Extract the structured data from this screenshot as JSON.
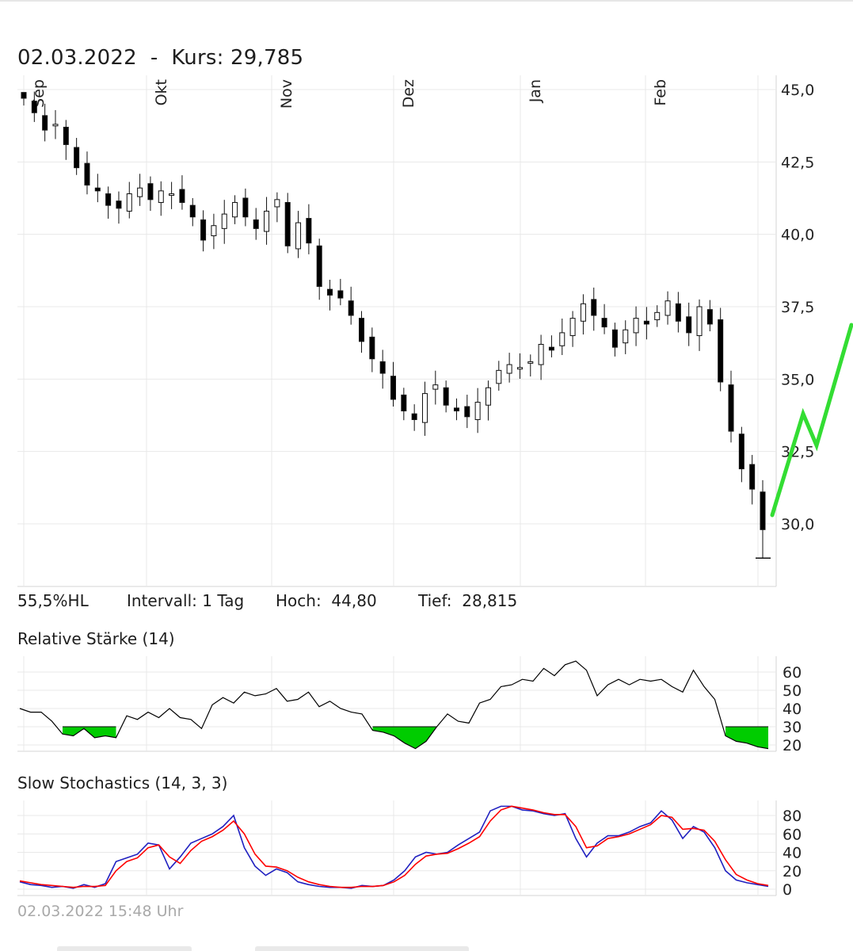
{
  "header": {
    "date": "02.03.2022",
    "separator": "-",
    "price_label": "Kurs:",
    "price_value": "29,785"
  },
  "info": {
    "range": "55,5%HL",
    "interval": "Intervall: 1 Tag",
    "high_label": "Hoch:",
    "high_value": "44,80",
    "low_label": "Tief:",
    "low_value": "28,815"
  },
  "footer": {
    "timestamp": "02.03.2022 15:48 Uhr"
  },
  "colors": {
    "candle_up_fill": "#ffffff",
    "candle_down_fill": "#000000",
    "rsi_line": "#000000",
    "rsi_oversold_fill": "#00cc00",
    "stoch_k": "#2020c0",
    "stoch_d": "#ff0000",
    "annotation": "#33dd33",
    "grid": "#e8e8e8"
  },
  "chart_data": [
    {
      "type": "candlestick",
      "title": "02.03.2022 - Kurs: 29,785",
      "months": [
        "Sep",
        "Okt",
        "Nov",
        "Dez",
        "Jan",
        "Feb"
      ],
      "y_ticks": [
        "45,0",
        "42,5",
        "40,0",
        "37,5",
        "35,0",
        "32,5",
        "30,0"
      ],
      "ylim": [
        28.0,
        45.5
      ],
      "high": 44.8,
      "low": 28.815,
      "last": 29.785,
      "close_path": [
        [
          0,
          44.7
        ],
        [
          1,
          44.2
        ],
        [
          2,
          43.6
        ],
        [
          3,
          43.8
        ],
        [
          4,
          43.1
        ],
        [
          5,
          42.3
        ],
        [
          6,
          41.7
        ],
        [
          7,
          41.5
        ],
        [
          8,
          41.0
        ],
        [
          9,
          40.9
        ],
        [
          10,
          41.4
        ],
        [
          11,
          41.6
        ],
        [
          12,
          41.2
        ],
        [
          13,
          41.5
        ],
        [
          14,
          41.4
        ],
        [
          15,
          41.1
        ],
        [
          16,
          40.6
        ],
        [
          17,
          39.8
        ],
        [
          18,
          40.3
        ],
        [
          19,
          40.7
        ],
        [
          20,
          41.1
        ],
        [
          21,
          40.6
        ],
        [
          22,
          40.2
        ],
        [
          23,
          40.8
        ],
        [
          24,
          41.2
        ],
        [
          25,
          39.6
        ],
        [
          26,
          40.4
        ],
        [
          27,
          39.7
        ],
        [
          28,
          38.2
        ],
        [
          29,
          37.9
        ],
        [
          30,
          37.8
        ],
        [
          31,
          37.2
        ],
        [
          32,
          36.3
        ],
        [
          33,
          35.7
        ],
        [
          34,
          35.2
        ],
        [
          35,
          34.3
        ],
        [
          36,
          33.9
        ],
        [
          37,
          33.6
        ],
        [
          38,
          34.5
        ],
        [
          39,
          34.8
        ],
        [
          40,
          34.1
        ],
        [
          41,
          33.9
        ],
        [
          42,
          33.7
        ],
        [
          43,
          34.2
        ],
        [
          44,
          34.7
        ],
        [
          45,
          35.3
        ],
        [
          46,
          35.5
        ],
        [
          47,
          35.4
        ],
        [
          48,
          35.6
        ],
        [
          49,
          36.2
        ],
        [
          50,
          36.0
        ],
        [
          51,
          36.6
        ],
        [
          52,
          37.1
        ],
        [
          53,
          37.6
        ],
        [
          54,
          37.2
        ],
        [
          55,
          36.8
        ],
        [
          56,
          36.1
        ],
        [
          57,
          36.7
        ],
        [
          58,
          37.1
        ],
        [
          59,
          36.9
        ],
        [
          60,
          37.3
        ],
        [
          61,
          37.7
        ],
        [
          62,
          37.0
        ],
        [
          63,
          36.6
        ],
        [
          64,
          37.5
        ],
        [
          65,
          36.9
        ],
        [
          66,
          34.9
        ],
        [
          67,
          33.2
        ],
        [
          68,
          31.9
        ],
        [
          69,
          31.2
        ],
        [
          70,
          29.8
        ]
      ]
    },
    {
      "type": "line",
      "title": "Relative Stärke (14)",
      "y_ticks": [
        60,
        50,
        40,
        30,
        20
      ],
      "ylim": [
        15,
        70
      ],
      "oversold_level": 30,
      "series": [
        {
          "values": [
            40,
            38,
            38,
            33,
            26,
            25,
            29,
            24,
            25,
            24,
            36,
            34,
            38,
            35,
            40,
            35,
            34,
            29,
            42,
            46,
            43,
            49,
            47,
            48,
            51,
            44,
            45,
            49,
            41,
            44,
            40,
            38,
            37,
            28,
            27,
            25,
            21,
            18,
            22,
            30,
            37,
            33,
            32,
            43,
            45,
            52,
            53,
            56,
            55,
            62,
            58,
            64,
            66,
            61,
            47,
            53,
            56,
            53,
            56,
            55,
            56,
            52,
            49,
            61,
            52,
            45,
            25,
            22,
            21,
            19,
            18
          ]
        }
      ]
    },
    {
      "type": "line",
      "title": "Slow Stochastics (14, 3, 3)",
      "y_ticks": [
        80,
        60,
        40,
        20,
        0
      ],
      "ylim": [
        -5,
        100
      ],
      "series": [
        {
          "values": [
            8,
            5,
            4,
            2,
            3,
            1,
            5,
            2,
            6,
            30,
            34,
            38,
            50,
            48,
            22,
            35,
            50,
            55,
            60,
            68,
            80,
            45,
            25,
            15,
            22,
            18,
            8,
            5,
            3,
            2,
            2,
            1,
            4,
            3,
            4,
            10,
            20,
            35,
            40,
            38,
            40,
            48,
            55,
            62,
            85,
            90,
            90,
            86,
            85,
            82,
            80,
            82,
            55,
            35,
            50,
            58,
            58,
            62,
            68,
            72,
            85,
            75,
            55,
            68,
            62,
            45,
            20,
            10,
            7,
            5,
            3
          ]
        },
        {
          "values": [
            9,
            7,
            5,
            4,
            3,
            2,
            3,
            3,
            4,
            20,
            30,
            34,
            45,
            48,
            35,
            28,
            42,
            52,
            57,
            64,
            74,
            60,
            38,
            25,
            24,
            20,
            13,
            8,
            5,
            3,
            2,
            2,
            3,
            3,
            4,
            8,
            15,
            27,
            36,
            38,
            39,
            44,
            50,
            57,
            74,
            86,
            90,
            88,
            86,
            83,
            81,
            81,
            68,
            45,
            47,
            55,
            57,
            60,
            65,
            70,
            80,
            78,
            65,
            66,
            64,
            52,
            32,
            16,
            10,
            6,
            4
          ]
        }
      ]
    }
  ]
}
